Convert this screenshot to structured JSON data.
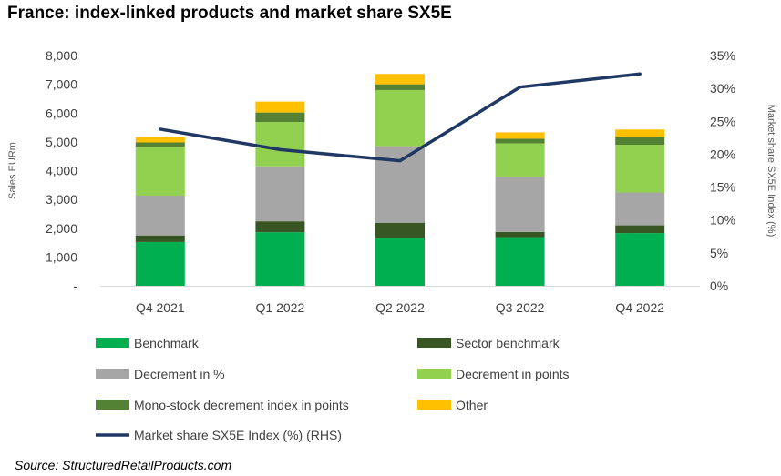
{
  "title": "France: index-linked products and market share SX5E",
  "source": "Source: StructuredRetailProducts.com",
  "chart_data": {
    "type": "bar",
    "stacked": true,
    "categories": [
      "Q4 2021",
      "Q1 2022",
      "Q2 2022",
      "Q3 2022",
      "Q4 2022"
    ],
    "ylabel": "Sales EURm",
    "y2label": "Market share SX5E Index (%)",
    "ylim": [
      0,
      8000
    ],
    "y2lim": [
      0,
      35
    ],
    "yticks": [
      "-",
      "1,000",
      "2,000",
      "3,000",
      "4,000",
      "5,000",
      "6,000",
      "7,000",
      "8,000"
    ],
    "y2ticks": [
      "0%",
      "5%",
      "10%",
      "15%",
      "20%",
      "25%",
      "30%",
      "35%"
    ],
    "grid": false,
    "legend_position": "bottom",
    "series": [
      {
        "name": "Benchmark",
        "color": "#00b050",
        "values": [
          1520,
          1860,
          1650,
          1690,
          1830
        ]
      },
      {
        "name": "Sector benchmark",
        "color": "#375623",
        "values": [
          230,
          380,
          540,
          180,
          270
        ]
      },
      {
        "name": "Decrement in %",
        "color": "#a6a6a6",
        "values": [
          1380,
          1910,
          2660,
          1910,
          1140
        ]
      },
      {
        "name": "Decrement in points",
        "color": "#92d050",
        "values": [
          1700,
          1540,
          1950,
          1170,
          1660
        ]
      },
      {
        "name": "Mono-stock decrement index in points",
        "color": "#548235",
        "values": [
          150,
          330,
          200,
          160,
          280
        ]
      },
      {
        "name": "Other",
        "color": "#ffc000",
        "values": [
          190,
          380,
          360,
          220,
          250
        ]
      }
    ],
    "line_series": {
      "name": "Market share SX5E Index (%) (RHS)",
      "color": "#203864",
      "axis": "right",
      "values": [
        23.8,
        20.7,
        19.0,
        30.2,
        32.2
      ]
    }
  }
}
